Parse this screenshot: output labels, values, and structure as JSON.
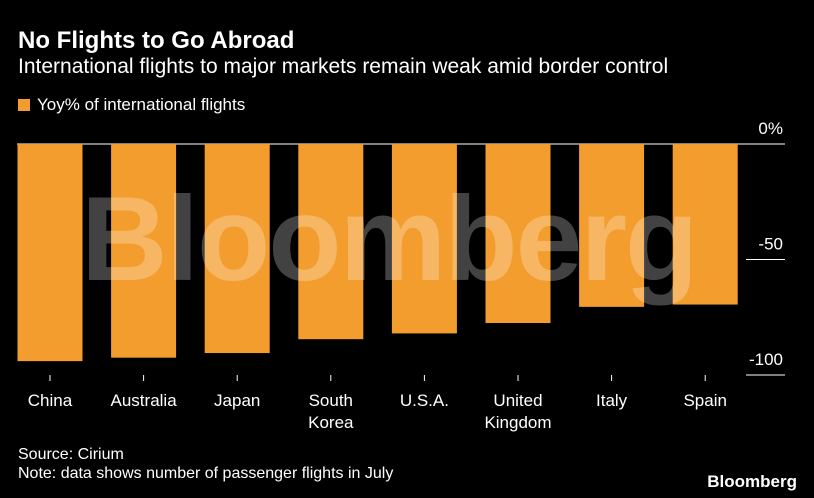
{
  "title": "No Flights to Go Abroad",
  "subtitle": "International flights to major markets remain weak amid border control",
  "legend_label": "Yoy% of international flights",
  "source": "Source: Cirium",
  "note": "Note: data shows number of passenger flights in July",
  "brand": "Bloomberg",
  "watermark": "Bloomberg",
  "colors": {
    "bar": "#F39D2F",
    "background": "#000000",
    "text": "#FFFFFF",
    "axis": "#FFFFFF"
  },
  "chart_data": {
    "type": "bar",
    "categories": [
      "China",
      "Australia",
      "Japan",
      "South Korea",
      "U.S.A.",
      "United Kingdom",
      "Italy",
      "Spain"
    ],
    "category_lines": [
      [
        "China"
      ],
      [
        "Australia"
      ],
      [
        "Japan"
      ],
      [
        "South",
        "Korea"
      ],
      [
        "U.S.A."
      ],
      [
        "United",
        "Kingdom"
      ],
      [
        "Italy"
      ],
      [
        "Spain"
      ]
    ],
    "values": [
      -94,
      -92.5,
      -90.5,
      -84.5,
      -82,
      -77.5,
      -70.5,
      -69.5
    ],
    "ylim": [
      -100,
      0
    ],
    "yticks": [
      0,
      -50,
      -100
    ],
    "ytick_labels": [
      "0%",
      "-50",
      "-100"
    ],
    "xlabel": "",
    "ylabel": "",
    "series_name": "Yoy% of international flights"
  }
}
